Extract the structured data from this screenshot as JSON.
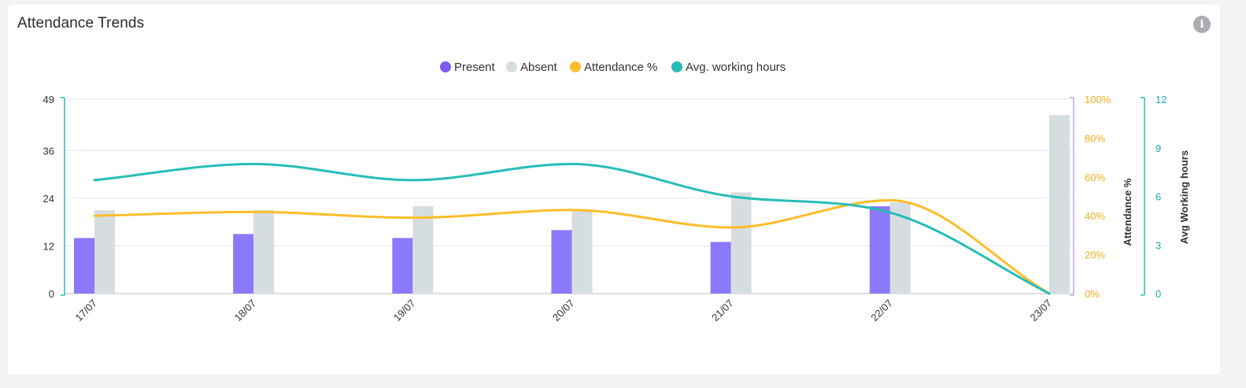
{
  "card": {
    "title": "Attendance Trends",
    "info_icon": "info-icon"
  },
  "colors": {
    "present": "#8c78fa",
    "absent": "#d6dde0",
    "attendance": "#fdbd2a",
    "avg_hours": "#27bdb8",
    "legend_present": "#7b5cf2"
  },
  "chart_data": {
    "type": "bar",
    "categories": [
      "17/07",
      "18/07",
      "19/07",
      "20/07",
      "21/07",
      "22/07",
      "23/07"
    ],
    "series": [
      {
        "name": "Present",
        "type": "bar",
        "axis": "left",
        "values": [
          14,
          15,
          14,
          16,
          13,
          22,
          0
        ]
      },
      {
        "name": "Absent",
        "type": "bar",
        "axis": "left",
        "values": [
          21,
          21,
          22,
          21,
          25.5,
          23,
          45
        ]
      },
      {
        "name": "Attendance %",
        "type": "line",
        "axis": "right1",
        "values": [
          40,
          42,
          39,
          43,
          34,
          48,
          0
        ]
      },
      {
        "name": "Avg. working hours",
        "type": "line",
        "axis": "right2",
        "values": [
          7,
          8,
          7,
          8,
          6,
          5,
          0
        ]
      }
    ],
    "axes": {
      "left": {
        "ticks": [
          "0",
          "12",
          "24",
          "36",
          "49"
        ],
        "ylim": [
          0,
          49
        ]
      },
      "right1": {
        "title": "Attendance %",
        "ticks": [
          "0%",
          "20%",
          "40%",
          "60%",
          "80%",
          "100%"
        ],
        "ylim": [
          0,
          100
        ]
      },
      "right2": {
        "title": "Avg Working hours",
        "ticks": [
          "0",
          "3",
          "6",
          "9",
          "12"
        ],
        "ylim": [
          0,
          12
        ]
      }
    },
    "legend": {
      "placement": "top-center",
      "items": [
        "Present",
        "Absent",
        "Attendance %",
        "Avg. working hours"
      ]
    },
    "grid": true
  }
}
